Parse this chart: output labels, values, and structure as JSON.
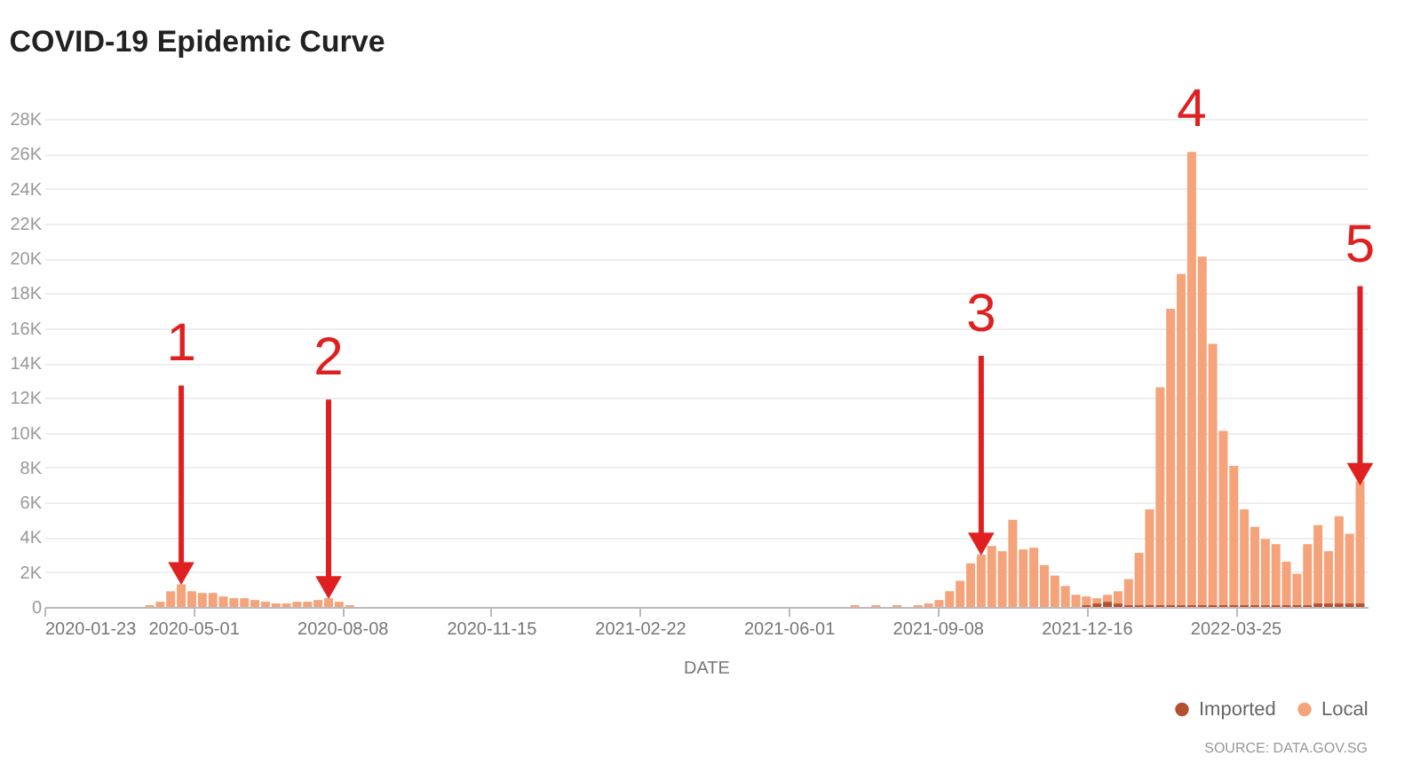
{
  "chart_data": {
    "type": "bar",
    "stacked": true,
    "title": "COVID-19 Epidemic Curve",
    "xlabel": "DATE",
    "x": [
      "2020-01-23",
      "2020-02-06",
      "2020-02-20",
      "2020-03-05",
      "2020-03-19",
      "2020-03-26",
      "2020-04-02",
      "2020-04-09",
      "2020-04-16",
      "2020-04-23",
      "2020-04-30",
      "2020-05-07",
      "2020-05-14",
      "2020-05-21",
      "2020-05-28",
      "2020-06-04",
      "2020-06-11",
      "2020-06-18",
      "2020-06-25",
      "2020-07-02",
      "2020-07-09",
      "2020-07-16",
      "2020-07-23",
      "2020-07-30",
      "2020-08-06",
      "2020-08-13",
      "2020-08-27",
      "2020-09-24",
      "2020-10-22",
      "2020-11-19",
      "2020-12-17",
      "2021-01-14",
      "2021-02-11",
      "2021-03-11",
      "2021-04-08",
      "2021-05-06",
      "2021-05-20",
      "2021-06-03",
      "2021-06-17",
      "2021-07-01",
      "2021-07-15",
      "2021-07-29",
      "2021-08-12",
      "2021-08-26",
      "2021-09-02",
      "2021-09-09",
      "2021-09-16",
      "2021-09-23",
      "2021-09-30",
      "2021-10-07",
      "2021-10-14",
      "2021-10-21",
      "2021-10-28",
      "2021-11-04",
      "2021-11-11",
      "2021-11-18",
      "2021-11-25",
      "2021-12-02",
      "2021-12-09",
      "2021-12-16",
      "2021-12-23",
      "2021-12-30",
      "2022-01-06",
      "2022-01-13",
      "2022-01-20",
      "2022-01-27",
      "2022-02-03",
      "2022-02-10",
      "2022-02-17",
      "2022-02-24",
      "2022-03-03",
      "2022-03-10",
      "2022-03-17",
      "2022-03-24",
      "2022-03-31",
      "2022-04-07",
      "2022-04-14",
      "2022-04-21",
      "2022-04-28",
      "2022-05-05",
      "2022-05-12",
      "2022-05-19",
      "2022-05-26",
      "2022-06-02",
      "2022-06-09",
      "2022-06-16"
    ],
    "series": [
      {
        "name": "Imported",
        "color": "#b5502f",
        "values": [
          0,
          0,
          0,
          0,
          0,
          0,
          0,
          0,
          0,
          0,
          0,
          0,
          0,
          0,
          0,
          0,
          0,
          0,
          0,
          0,
          0,
          0,
          0,
          0,
          0,
          0,
          0,
          0,
          0,
          0,
          0,
          0,
          0,
          0,
          0,
          0,
          0,
          0,
          0,
          0,
          0,
          0,
          0,
          0,
          0,
          0,
          0,
          0,
          0,
          0,
          0,
          0,
          0,
          0,
          0,
          0,
          0,
          0,
          0,
          100,
          200,
          300,
          200,
          100,
          100,
          100,
          100,
          100,
          100,
          100,
          100,
          100,
          100,
          100,
          100,
          100,
          100,
          100,
          100,
          100,
          100,
          200,
          200,
          200,
          200,
          200
        ]
      },
      {
        "name": "Local",
        "color": "#f5a37a",
        "values": [
          0,
          0,
          0,
          0,
          0,
          0,
          100,
          300,
          900,
          1300,
          900,
          800,
          800,
          600,
          500,
          500,
          400,
          300,
          200,
          200,
          300,
          300,
          400,
          500,
          300,
          100,
          0,
          0,
          0,
          0,
          0,
          0,
          0,
          0,
          0,
          0,
          0,
          0,
          0,
          0,
          100,
          100,
          100,
          100,
          200,
          400,
          900,
          1500,
          2500,
          3000,
          3500,
          3200,
          5000,
          3300,
          3400,
          2400,
          1800,
          1200,
          700,
          500,
          300,
          400,
          700,
          1500,
          3000,
          5500,
          12500,
          17000,
          19000,
          26000,
          20000,
          15000,
          10000,
          8000,
          5500,
          4500,
          3800,
          3500,
          2500,
          1800,
          3500,
          4500,
          3000,
          5000,
          4000,
          7000
        ]
      }
    ],
    "xlim": [
      "2020-01-23",
      "2022-06-21"
    ],
    "xticks": [
      "2020-01-23",
      "2020-05-01",
      "2020-08-08",
      "2020-11-15",
      "2021-02-22",
      "2021-06-01",
      "2021-09-08",
      "2021-12-16",
      "2022-03-25"
    ],
    "ylim": [
      0,
      28000
    ],
    "yticks": [
      0,
      {
        "value": 2000,
        "label": "2K"
      },
      {
        "value": 4000,
        "label": "4K"
      },
      {
        "value": 6000,
        "label": "6K"
      },
      {
        "value": 8000,
        "label": "8K"
      },
      {
        "value": 10000,
        "label": "10K"
      },
      {
        "value": 12000,
        "label": "12K"
      },
      {
        "value": 14000,
        "label": "14K"
      },
      {
        "value": 16000,
        "label": "16K"
      },
      {
        "value": 18000,
        "label": "18K"
      },
      {
        "value": 20000,
        "label": "20K"
      },
      {
        "value": 22000,
        "label": "22K"
      },
      {
        "value": 24000,
        "label": "24K"
      },
      {
        "value": 26000,
        "label": "26K"
      },
      {
        "value": 28000,
        "label": "28K"
      }
    ],
    "grid": "y",
    "legend": "bottom right",
    "annotations": [
      {
        "text": "1",
        "x": "2020-04-23",
        "y": 1300
      },
      {
        "text": "2",
        "x": "2020-07-30",
        "y": 500
      },
      {
        "text": "3",
        "x": "2021-10-07",
        "y": 3000
      },
      {
        "text": "4",
        "x": "2022-02-24",
        "y": 26000
      },
      {
        "text": "5",
        "x": "2022-06-16",
        "y": 7000
      },
      "SOURCE: DATA.GOV.SG"
    ]
  }
}
